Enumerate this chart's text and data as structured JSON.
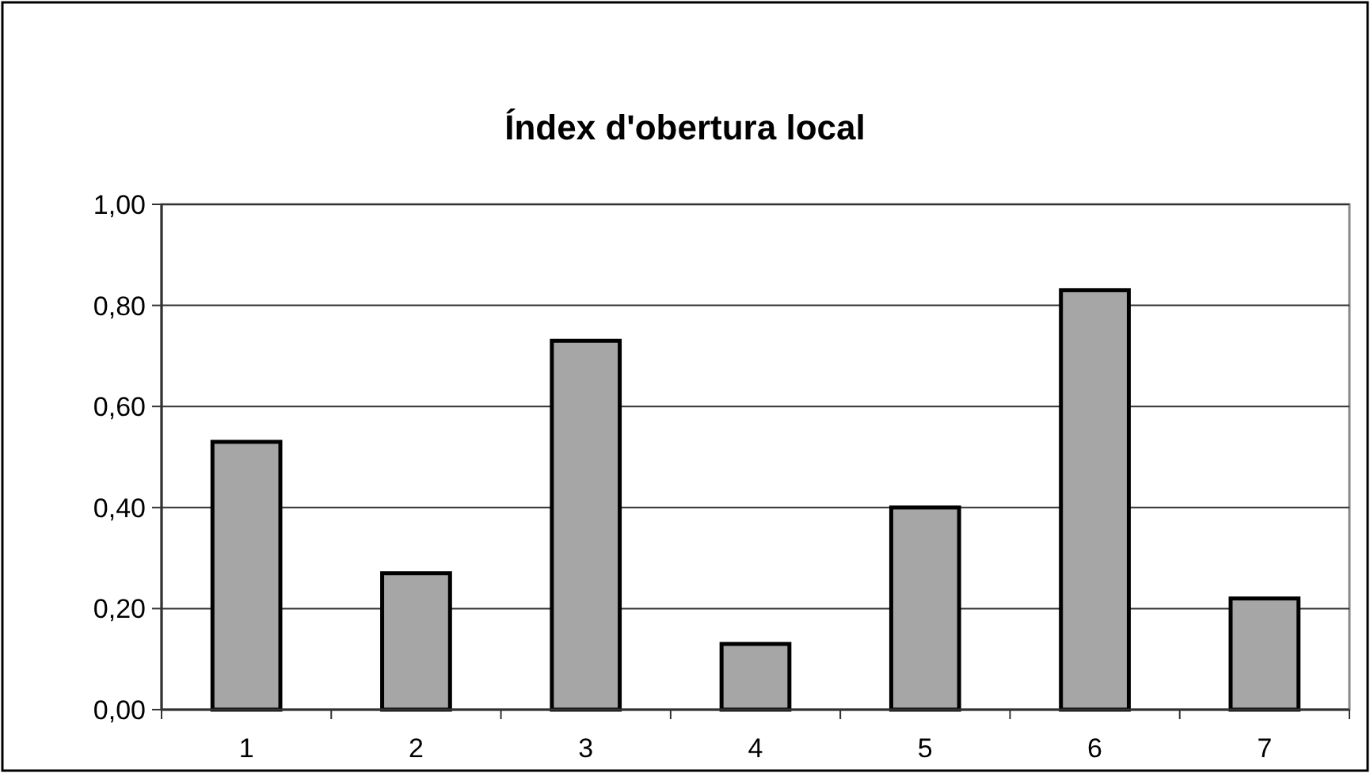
{
  "chart_data": {
    "type": "bar",
    "title": "Índex d'obertura local",
    "categories": [
      "1",
      "2",
      "3",
      "4",
      "5",
      "6",
      "7"
    ],
    "values": [
      0.53,
      0.27,
      0.73,
      0.13,
      0.4,
      0.83,
      0.22
    ],
    "color": "#a6a6a6",
    "ylim": [
      0,
      1
    ],
    "yticks": [
      {
        "value": 0,
        "label": "0,00"
      },
      {
        "value": 0.2,
        "label": "0,20"
      },
      {
        "value": 0.4,
        "label": "0,40"
      },
      {
        "value": 0.6,
        "label": "0,60"
      },
      {
        "value": 0.8,
        "label": "0,80"
      },
      {
        "value": 1,
        "label": "1,00"
      }
    ],
    "grid": "y"
  }
}
